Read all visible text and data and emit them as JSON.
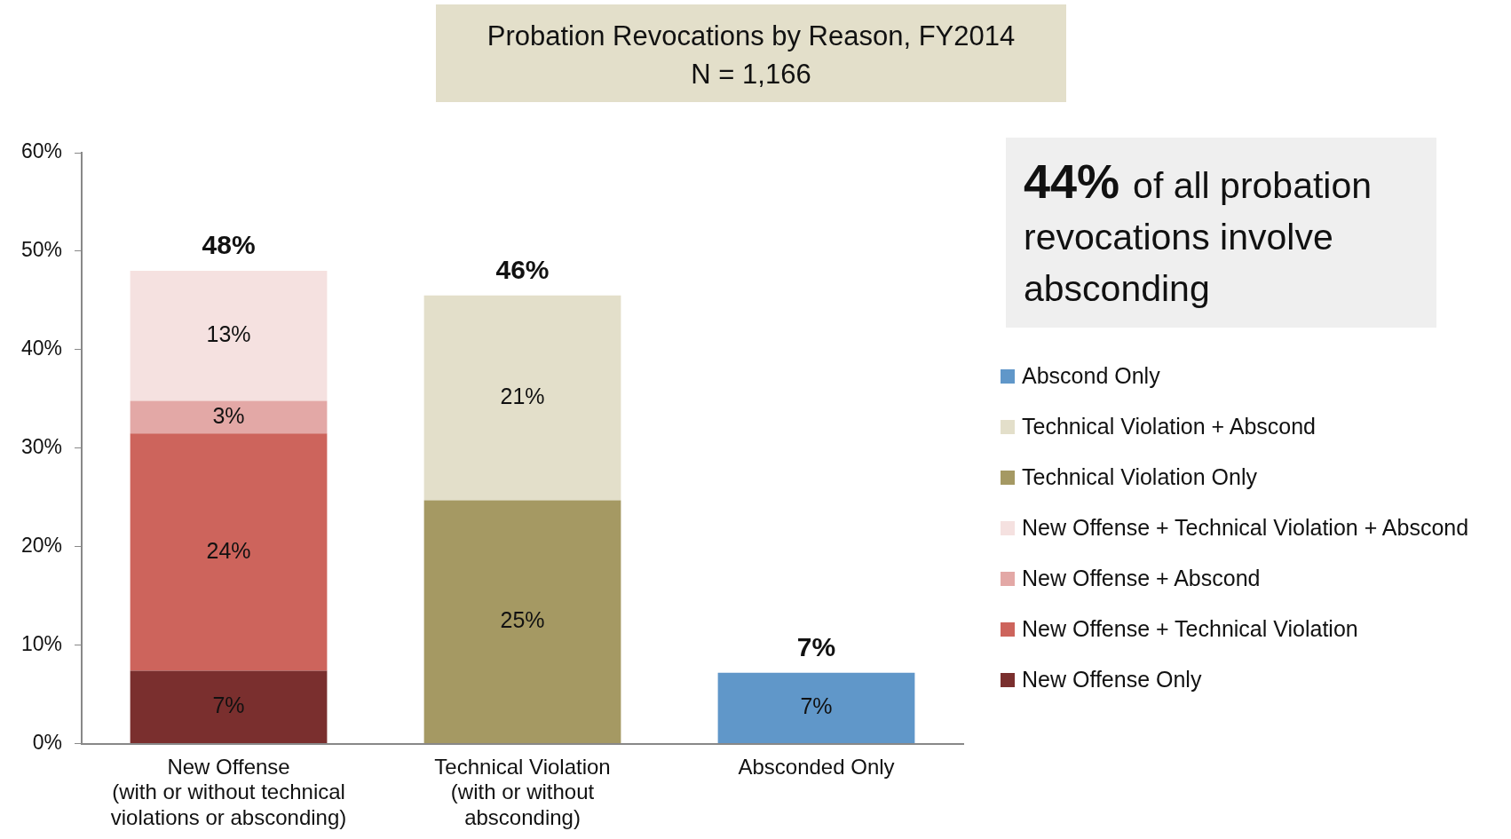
{
  "chart_data": {
    "type": "bar",
    "title": "Probation Revocations by Reason, FY2014",
    "subtitle": "N = 1,166",
    "categories": [
      "New Offense\n(with or without technical\nviolations or absconding)",
      "Technical Violation\n(with or without\nabsconding)",
      "Absconded Only"
    ],
    "stacked": true,
    "series": [
      {
        "name": "New Offense Only",
        "color": "#7a2f2e",
        "values": [
          7.4,
          null,
          null
        ],
        "value_labels": [
          "7%",
          null,
          null
        ]
      },
      {
        "name": "New Offense + Technical Violation",
        "color": "#cd645c",
        "values": [
          24.1,
          null,
          null
        ],
        "value_labels": [
          "24%",
          null,
          null
        ]
      },
      {
        "name": "New Offense + Abscond",
        "color": "#e3a8a6",
        "values": [
          3.3,
          null,
          null
        ],
        "value_labels": [
          "3%",
          null,
          null
        ]
      },
      {
        "name": "New Offense + Technical Violation + Abscond",
        "color": "#f5e1e0",
        "values": [
          13.2,
          null,
          null
        ],
        "value_labels": [
          "13%",
          null,
          null
        ]
      },
      {
        "name": "Technical Violation Only",
        "color": "#a59963",
        "values": [
          null,
          24.7,
          null
        ],
        "value_labels": [
          null,
          "25%",
          null
        ]
      },
      {
        "name": "Technical Violation + Abscond",
        "color": "#e3dfca",
        "values": [
          null,
          20.8,
          null
        ],
        "value_labels": [
          null,
          "21%",
          null
        ]
      },
      {
        "name": "Abscond Only",
        "color": "#6097c9",
        "values": [
          null,
          null,
          7.2
        ],
        "value_labels": [
          null,
          null,
          "7%"
        ]
      }
    ],
    "totals": [
      "48%",
      "46%",
      "7%"
    ],
    "ylim": [
      0,
      60
    ],
    "yticks": [
      {
        "value": 0,
        "label": "0%"
      },
      {
        "value": 10,
        "label": "10%"
      },
      {
        "value": 20,
        "label": "20%"
      },
      {
        "value": 30,
        "label": "30%"
      },
      {
        "value": 40,
        "label": "40%"
      },
      {
        "value": 50,
        "label": "50%"
      },
      {
        "value": 60,
        "label": "60%"
      }
    ],
    "grid": false,
    "legend": "right",
    "annotations": [
      "44%",
      "of all probation revocations involve absconding"
    ]
  }
}
